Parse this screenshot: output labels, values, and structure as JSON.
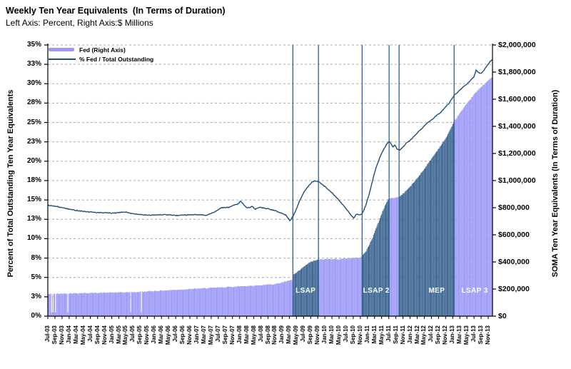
{
  "title": "Weekly Ten Year Equivalents  (In Terms of Duration)",
  "subtitle": "Left Axis: Percent, Right Axis:$ Millions",
  "legend": {
    "items": [
      {
        "label": "Fed (Right Axis)",
        "swatch": "bar"
      },
      {
        "label": "% Fed / Total Outstanding",
        "swatch": "line"
      }
    ]
  },
  "left_axis": {
    "title": "Percent of Total Outstanding Ten Year Equivalents",
    "min_pct": 0,
    "max_pct": 35,
    "tick_step_pct": 2.5,
    "tick_labels": [
      "0%",
      "3%",
      "5%",
      "8%",
      "10%",
      "13%",
      "15%",
      "18%",
      "20%",
      "23%",
      "25%",
      "28%",
      "30%",
      "33%",
      "35%"
    ]
  },
  "right_axis": {
    "title": "SOMA Ten Year Equivalents (In Terms of Duration)",
    "min": 0,
    "max": 2000000,
    "tick_step": 200000,
    "tick_labels": [
      "$0",
      "$200,000",
      "$400,000",
      "$600,000",
      "$800,000",
      "$1,000,000",
      "$1,200,000",
      "$1,400,000",
      "$1,600,000",
      "$1,800,000",
      "$2,000,000"
    ]
  },
  "x_axis": {
    "tick_labels": [
      "Jul-03",
      "Sep-03",
      "Nov-03",
      "Jan-04",
      "Mar-04",
      "May-04",
      "Jul-04",
      "Sep-04",
      "Nov-04",
      "Jan-05",
      "Mar-05",
      "May-05",
      "Jul-05",
      "Sep-05",
      "Nov-05",
      "Jan-06",
      "Mar-06",
      "May-06",
      "Jul-06",
      "Sep-06",
      "Nov-06",
      "Jan-07",
      "Mar-07",
      "May-07",
      "Jul-07",
      "Sep-07",
      "Nov-07",
      "Jan-08",
      "Mar-08",
      "May-08",
      "Jul-08",
      "Sep-08",
      "Nov-08",
      "Jan-09",
      "Mar-09",
      "May-09",
      "Jul-09",
      "Sep-09",
      "Nov-09",
      "Jan-10",
      "Mar-10",
      "May-10",
      "Jul-10",
      "Sep-10",
      "Nov-10",
      "Jan-11",
      "Mar-11",
      "May-11",
      "Jul-11",
      "Sep-11",
      "Nov-11",
      "Jan-12",
      "Mar-12",
      "May-12",
      "Jul-12",
      "Sep-12",
      "Nov-12",
      "Jan-13",
      "Mar-13",
      "May-13",
      "Jul-13",
      "Sep-13",
      "Nov-13"
    ]
  },
  "colors": {
    "bar": "#9C99F7",
    "bar_program_shaded": "#3A6491",
    "line": "#1F4E79",
    "event_line": "#31618F",
    "grid": "#A9A9A9",
    "axis": "#000000",
    "program_label_text": "#FFFFFF",
    "background": "#FFFFFF"
  },
  "chart_data": {
    "type": "combo-bar-line",
    "frequency": "weekly",
    "x_epoch": "Jul-2003",
    "x_domain_months": [
      0,
      125.2
    ],
    "left_axis_range_pct": [
      0,
      35
    ],
    "right_axis_range_millions": [
      0,
      2000000
    ],
    "scale_note": "axes aligned: right-axis $ value = pct * 2000000/35; bar anchors below given in left-axis pct-equivalent units",
    "series": [
      {
        "name": "Fed (Right Axis)",
        "type": "bar",
        "axis": "right",
        "anchors_month_pct": [
          [
            0,
            2.85
          ],
          [
            6,
            2.95
          ],
          [
            12,
            3.0
          ],
          [
            18,
            3.05
          ],
          [
            24,
            3.1
          ],
          [
            30,
            3.25
          ],
          [
            36,
            3.4
          ],
          [
            42,
            3.55
          ],
          [
            48,
            3.7
          ],
          [
            54,
            3.85
          ],
          [
            60,
            4.0
          ],
          [
            64,
            4.15
          ],
          [
            66,
            4.35
          ],
          [
            68.5,
            4.65
          ],
          [
            68.9,
            4.7
          ],
          [
            69.1,
            5.35
          ],
          [
            70,
            5.6
          ],
          [
            71,
            5.95
          ],
          [
            72,
            6.35
          ],
          [
            73,
            6.7
          ],
          [
            74,
            7.0
          ],
          [
            75,
            7.15
          ],
          [
            76.2,
            7.3
          ],
          [
            78,
            7.35
          ],
          [
            80,
            7.4
          ],
          [
            82,
            7.35
          ],
          [
            84,
            7.45
          ],
          [
            86,
            7.5
          ],
          [
            88,
            7.6
          ],
          [
            88.6,
            7.85
          ],
          [
            89.5,
            8.3
          ],
          [
            90.5,
            9.2
          ],
          [
            91.5,
            10.2
          ],
          [
            92.5,
            11.4
          ],
          [
            93.5,
            12.6
          ],
          [
            94.5,
            13.8
          ],
          [
            95.5,
            14.8
          ],
          [
            96.1,
            15.2
          ],
          [
            97,
            15.25
          ],
          [
            98,
            15.3
          ],
          [
            98.9,
            15.4
          ],
          [
            100,
            15.8
          ],
          [
            102,
            16.7
          ],
          [
            104,
            17.8
          ],
          [
            106,
            19.0
          ],
          [
            108,
            20.3
          ],
          [
            110,
            21.6
          ],
          [
            112,
            22.9
          ],
          [
            114.4,
            25.1
          ],
          [
            116,
            26.2
          ],
          [
            118,
            27.4
          ],
          [
            120,
            28.6
          ],
          [
            122,
            29.6
          ],
          [
            124,
            30.4
          ],
          [
            125.2,
            30.9
          ]
        ],
        "dip_weeks_months": [
          1.0,
          1.6,
          2.2,
          5.6,
          23.3,
          26.3
        ],
        "dip_value_pct": 0.5
      },
      {
        "name": "% Fed / Total Outstanding",
        "type": "line",
        "axis": "left",
        "anchors_month_pct": [
          [
            0,
            14.3
          ],
          [
            2.6,
            14.15
          ],
          [
            6.6,
            13.75
          ],
          [
            10.6,
            13.5
          ],
          [
            14.6,
            13.35
          ],
          [
            18.7,
            13.3
          ],
          [
            21.7,
            13.45
          ],
          [
            24.7,
            13.15
          ],
          [
            28.7,
            13.05
          ],
          [
            32.7,
            13.1
          ],
          [
            36.7,
            13.0
          ],
          [
            40.7,
            13.1
          ],
          [
            44.7,
            13.05
          ],
          [
            46.8,
            13.4
          ],
          [
            48.8,
            14.0
          ],
          [
            51.2,
            14.05
          ],
          [
            52.2,
            14.35
          ],
          [
            53.8,
            14.5
          ],
          [
            54.2,
            14.95
          ],
          [
            55.2,
            14.3
          ],
          [
            56.2,
            13.95
          ],
          [
            57.5,
            14.15
          ],
          [
            58.5,
            13.8
          ],
          [
            59.5,
            14.05
          ],
          [
            61,
            13.95
          ],
          [
            63,
            13.75
          ],
          [
            65,
            13.45
          ],
          [
            67,
            13.05
          ],
          [
            68.2,
            12.3
          ],
          [
            69,
            12.9
          ],
          [
            69.8,
            13.6
          ],
          [
            70.8,
            14.8
          ],
          [
            72,
            15.9
          ],
          [
            73.2,
            16.7
          ],
          [
            74.4,
            17.3
          ],
          [
            75.4,
            17.45
          ],
          [
            76.4,
            17.3
          ],
          [
            77.8,
            16.8
          ],
          [
            79.9,
            16.0
          ],
          [
            81.9,
            15.0
          ],
          [
            83.9,
            13.9
          ],
          [
            85.3,
            13.1
          ],
          [
            86.1,
            12.65
          ],
          [
            86.9,
            13.15
          ],
          [
            87.7,
            13.05
          ],
          [
            88.5,
            13.2
          ],
          [
            89.5,
            14.3
          ],
          [
            90.5,
            15.8
          ],
          [
            91.5,
            17.6
          ],
          [
            92.3,
            19.0
          ],
          [
            93.3,
            20.3
          ],
          [
            94.3,
            21.3
          ],
          [
            95.3,
            22.1
          ],
          [
            96.1,
            22.55
          ],
          [
            96.7,
            22.2
          ],
          [
            97.1,
            21.8
          ],
          [
            97.7,
            22.1
          ],
          [
            98.3,
            21.6
          ],
          [
            99.1,
            21.4
          ],
          [
            99.5,
            21.6
          ],
          [
            100.9,
            22.3
          ],
          [
            102.5,
            22.9
          ],
          [
            103.9,
            23.6
          ],
          [
            105.3,
            24.2
          ],
          [
            106.3,
            24.7
          ],
          [
            107,
            25.0
          ],
          [
            108,
            25.3
          ],
          [
            109.4,
            25.9
          ],
          [
            110.6,
            26.3
          ],
          [
            111.8,
            26.9
          ],
          [
            113,
            27.5
          ],
          [
            114.4,
            28.5
          ],
          [
            115.4,
            28.9
          ],
          [
            116.6,
            29.4
          ],
          [
            117.8,
            29.9
          ],
          [
            119,
            30.4
          ],
          [
            120,
            30.9
          ],
          [
            120.6,
            31.8
          ],
          [
            121.2,
            31.4
          ],
          [
            122,
            31.3
          ],
          [
            122.8,
            31.7
          ],
          [
            123.6,
            32.3
          ],
          [
            124.4,
            32.8
          ],
          [
            125.1,
            33.1
          ]
        ]
      }
    ],
    "programs": [
      {
        "label": "LSAP",
        "start_month": 69.0,
        "end_month": 76.2,
        "shaded": true,
        "label_month": 72.6
      },
      {
        "label": "LSAP 2",
        "start_month": 88.5,
        "end_month": 96.1,
        "shaded": true,
        "label_month": 92.5
      },
      {
        "label": "MEP",
        "start_month": 98.9,
        "end_month": 114.4,
        "shaded": true,
        "label_month": 109.5
      },
      {
        "label": "LSAP 3",
        "start_month": 114.4,
        "end_month": 125.2,
        "shaded": false,
        "label_month": 120.2
      }
    ],
    "event_line_months": [
      69.0,
      76.2,
      88.5,
      96.1,
      98.9,
      114.4
    ]
  }
}
